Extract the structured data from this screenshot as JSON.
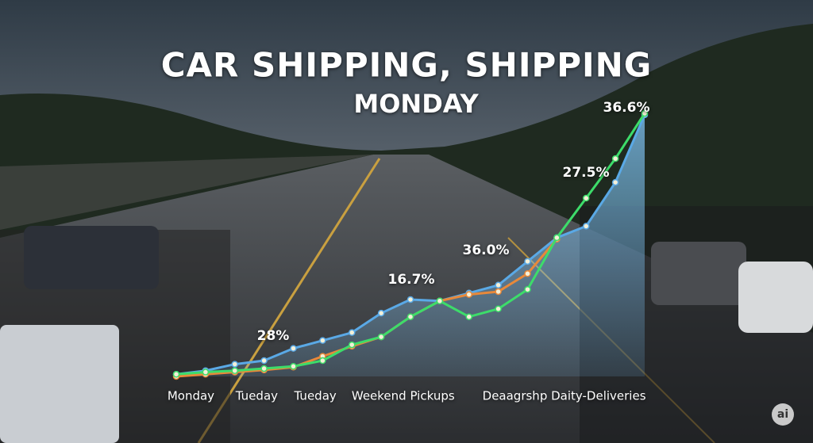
{
  "chart_data": {
    "type": "line",
    "title": [
      "CAR SHIPPING, SHIPPING",
      "MONDAY"
    ],
    "annotations": [
      "28%",
      "16.7%",
      "36.0%",
      "27.5%",
      "36.6%"
    ],
    "x": [
      0,
      1,
      2,
      3,
      4,
      5,
      6,
      7,
      8,
      9,
      10,
      11,
      12,
      13,
      14,
      15,
      16
    ],
    "xlim": [
      0,
      16
    ],
    "xticks": [
      {
        "value": 0.5,
        "label": "Monday"
      },
      {
        "value": 2.75,
        "label": "Tueday"
      },
      {
        "value": 4.75,
        "label": "Tueday"
      },
      {
        "value": 7.75,
        "label": "Weekend Pickups"
      },
      {
        "value": 13.25,
        "label": "Deaagrshp Daity-Deliveries"
      }
    ],
    "series": [
      {
        "color": "#5aa9e6",
        "fill": true,
        "values": [
          0.3,
          0.8,
          1.7,
          2.2,
          3.9,
          5.0,
          6.1,
          8.8,
          10.7,
          10.5,
          11.6,
          12.7,
          16.0,
          19.3,
          20.9,
          27.0,
          36.4
        ]
      },
      {
        "color": "#e8893a",
        "fill": false,
        "values": [
          0,
          0.3,
          0.6,
          0.9,
          1.3,
          2.8,
          4.2,
          5.5,
          8.3,
          10.5,
          11.4,
          11.8,
          14.3,
          19.1,
          null,
          null,
          null
        ]
      },
      {
        "color": "#3ddc6a",
        "fill": false,
        "values": [
          0.3,
          0.6,
          0.8,
          1.1,
          1.4,
          2.2,
          4.4,
          5.5,
          8.3,
          10.5,
          8.3,
          9.4,
          12.1,
          19.3,
          24.8,
          30.3,
          36.6
        ]
      }
    ]
  },
  "watermark": "ai"
}
